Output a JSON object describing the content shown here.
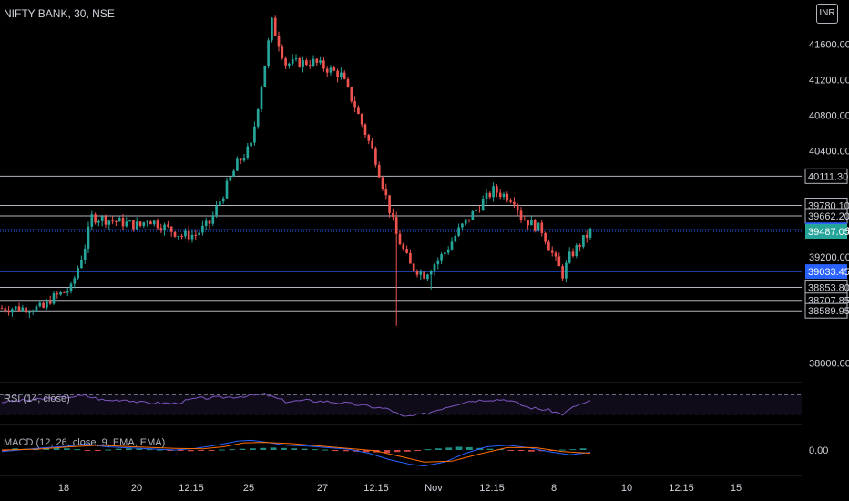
{
  "header": {
    "symbol_title": "NIFTY BANK, 30, NSE",
    "currency_badge": "INR",
    "rsi_label": "RSI (14, close)",
    "macd_label": "MACD (12, 26, close, 9, EMA, EMA)"
  },
  "colors": {
    "background": "#000000",
    "up": "#26a69a",
    "down": "#ef5350",
    "grid_line": "#b2b5be",
    "blue_line": "#2962ff",
    "current_price": "#26a69a",
    "rsi_line": "#7e57c2",
    "macd_line": "#2962ff",
    "signal_line": "#ff6d00"
  },
  "chart_data": {
    "type": "candlestick",
    "y_axis_ticks": [
      "41600.00",
      "41200.00",
      "40800.00",
      "40400.00",
      "39200.00",
      "38000.00"
    ],
    "ylim": [
      37800,
      42100
    ],
    "x_axis_ticks": [
      "18",
      "20",
      "12:15",
      "25",
      "27",
      "12:15",
      "Nov",
      "12:15",
      "8",
      "10",
      "12:15",
      "15"
    ],
    "horizontal_levels": [
      {
        "label": "40111.30",
        "value": 40111.3,
        "style": "gray"
      },
      {
        "label": "39780.10",
        "value": 39780.1,
        "style": "gray"
      },
      {
        "label": "39662.20",
        "value": 39662.2,
        "style": "gray"
      },
      {
        "label": "39505.00",
        "value": 39505.0,
        "style": "blue"
      },
      {
        "label": "39033.45",
        "value": 39033.45,
        "style": "blue"
      },
      {
        "label": "38853.80",
        "value": 38853.8,
        "style": "gray"
      },
      {
        "label": "38707.85",
        "value": 38707.85,
        "style": "gray"
      },
      {
        "label": "38589.95",
        "value": 38589.95,
        "style": "gray"
      }
    ],
    "current_price": {
      "label": "39487.05",
      "value": 39487.05
    },
    "close_path": [
      [
        0,
        38620
      ],
      [
        12,
        38620
      ],
      [
        14,
        38720
      ],
      [
        20,
        38840
      ],
      [
        24,
        39320
      ],
      [
        26,
        39650
      ],
      [
        40,
        39550
      ],
      [
        42,
        39630
      ],
      [
        52,
        39440
      ],
      [
        56,
        39450
      ],
      [
        60,
        39580
      ],
      [
        68,
        40250
      ],
      [
        72,
        40450
      ],
      [
        76,
        41380
      ],
      [
        78,
        41850
      ],
      [
        82,
        41380
      ],
      [
        90,
        41400
      ],
      [
        98,
        41250
      ],
      [
        102,
        40900
      ],
      [
        108,
        40300
      ],
      [
        114,
        39450
      ],
      [
        118,
        39100
      ],
      [
        122,
        39000
      ],
      [
        128,
        39250
      ],
      [
        132,
        39500
      ],
      [
        138,
        39780
      ],
      [
        142,
        39950
      ],
      [
        148,
        39850
      ],
      [
        150,
        39650
      ],
      [
        156,
        39500
      ],
      [
        160,
        39150
      ],
      [
        162,
        39000
      ],
      [
        164,
        39200
      ],
      [
        170,
        39487.05
      ]
    ],
    "rsi": {
      "upper": 70,
      "lower": 30,
      "ylim": [
        20,
        80
      ],
      "path": [
        [
          0,
          55
        ],
        [
          10,
          60
        ],
        [
          20,
          66
        ],
        [
          24,
          68
        ],
        [
          30,
          58
        ],
        [
          36,
          60
        ],
        [
          40,
          54
        ],
        [
          50,
          52
        ],
        [
          56,
          62
        ],
        [
          62,
          64
        ],
        [
          68,
          66
        ],
        [
          76,
          71
        ],
        [
          82,
          56
        ],
        [
          88,
          58
        ],
        [
          94,
          56
        ],
        [
          100,
          52
        ],
        [
          106,
          46
        ],
        [
          112,
          40
        ],
        [
          116,
          24
        ],
        [
          122,
          30
        ],
        [
          128,
          44
        ],
        [
          134,
          56
        ],
        [
          140,
          60
        ],
        [
          146,
          60
        ],
        [
          152,
          44
        ],
        [
          158,
          38
        ],
        [
          162,
          30
        ],
        [
          166,
          48
        ],
        [
          170,
          56
        ]
      ]
    },
    "macd": {
      "zero_label": "0.00",
      "ylim": [
        -250,
        250
      ],
      "macd_path": [
        [
          0,
          -20
        ],
        [
          10,
          20
        ],
        [
          20,
          50
        ],
        [
          24,
          80
        ],
        [
          30,
          40
        ],
        [
          40,
          20
        ],
        [
          50,
          0
        ],
        [
          56,
          20
        ],
        [
          62,
          60
        ],
        [
          68,
          110
        ],
        [
          72,
          120
        ],
        [
          76,
          100
        ],
        [
          82,
          60
        ],
        [
          88,
          50
        ],
        [
          94,
          30
        ],
        [
          100,
          10
        ],
        [
          106,
          -40
        ],
        [
          112,
          -120
        ],
        [
          118,
          -180
        ],
        [
          122,
          -200
        ],
        [
          128,
          -150
        ],
        [
          134,
          -40
        ],
        [
          140,
          40
        ],
        [
          146,
          60
        ],
        [
          152,
          30
        ],
        [
          158,
          -20
        ],
        [
          164,
          -60
        ],
        [
          170,
          -30
        ]
      ],
      "signal_path": [
        [
          0,
          0
        ],
        [
          10,
          10
        ],
        [
          20,
          40
        ],
        [
          28,
          60
        ],
        [
          38,
          40
        ],
        [
          50,
          20
        ],
        [
          58,
          15
        ],
        [
          64,
          40
        ],
        [
          70,
          90
        ],
        [
          76,
          95
        ],
        [
          84,
          80
        ],
        [
          92,
          50
        ],
        [
          100,
          20
        ],
        [
          108,
          -10
        ],
        [
          116,
          -90
        ],
        [
          122,
          -150
        ],
        [
          130,
          -140
        ],
        [
          138,
          -50
        ],
        [
          146,
          30
        ],
        [
          154,
          30
        ],
        [
          162,
          -20
        ],
        [
          170,
          -40
        ]
      ],
      "histogram": [
        -10,
        20,
        15,
        10,
        25,
        30,
        20,
        10,
        -10,
        -5,
        5,
        15,
        20,
        15,
        10,
        5,
        -5,
        -10,
        -15,
        -10,
        -5,
        5,
        10,
        15,
        20,
        25,
        30,
        25,
        20,
        15,
        10,
        5,
        -10,
        -15,
        -20,
        -25,
        -30,
        -35,
        -25,
        -20,
        -10,
        10,
        20,
        30,
        40,
        35,
        25,
        15,
        10,
        -5,
        -10,
        -20,
        -15,
        -10,
        5,
        10,
        20
      ]
    }
  }
}
